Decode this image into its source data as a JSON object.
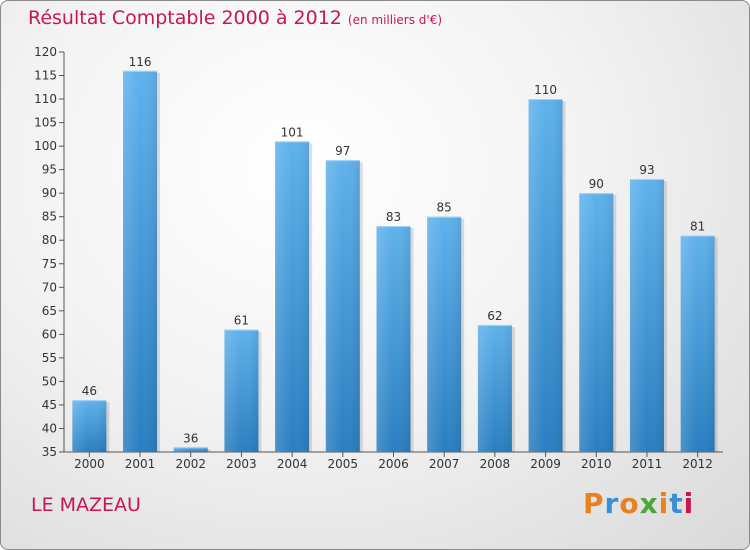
{
  "title": "Résultat Comptable 2000 à 2012",
  "subtitle": "(en milliers d'€)",
  "commune": "LE MAZEAU",
  "logo": {
    "text": "Proxiti",
    "colors": [
      "#e8811e",
      "#3a8ed8",
      "#e8811e",
      "#4aa83a",
      "#e8811e",
      "#3a8ed8",
      "#c8174e"
    ]
  },
  "colors": {
    "title": "#c8174e",
    "bar_top": "#5fb2ec",
    "bar_bottom": "#2a7ec0"
  },
  "chart_data": {
    "type": "bar",
    "title": "Résultat Comptable 2000 à 2012",
    "xlabel": "",
    "ylabel": "",
    "categories": [
      "2000",
      "2001",
      "2002",
      "2003",
      "2004",
      "2005",
      "2006",
      "2007",
      "2008",
      "2009",
      "2010",
      "2011",
      "2012"
    ],
    "values": [
      46,
      116,
      36,
      61,
      101,
      97,
      83,
      85,
      62,
      110,
      90,
      93,
      81
    ],
    "ylim": [
      35,
      120
    ],
    "yticks": [
      35,
      40,
      45,
      50,
      55,
      60,
      65,
      70,
      75,
      80,
      85,
      90,
      95,
      100,
      105,
      110,
      115,
      120
    ],
    "grid": false
  }
}
